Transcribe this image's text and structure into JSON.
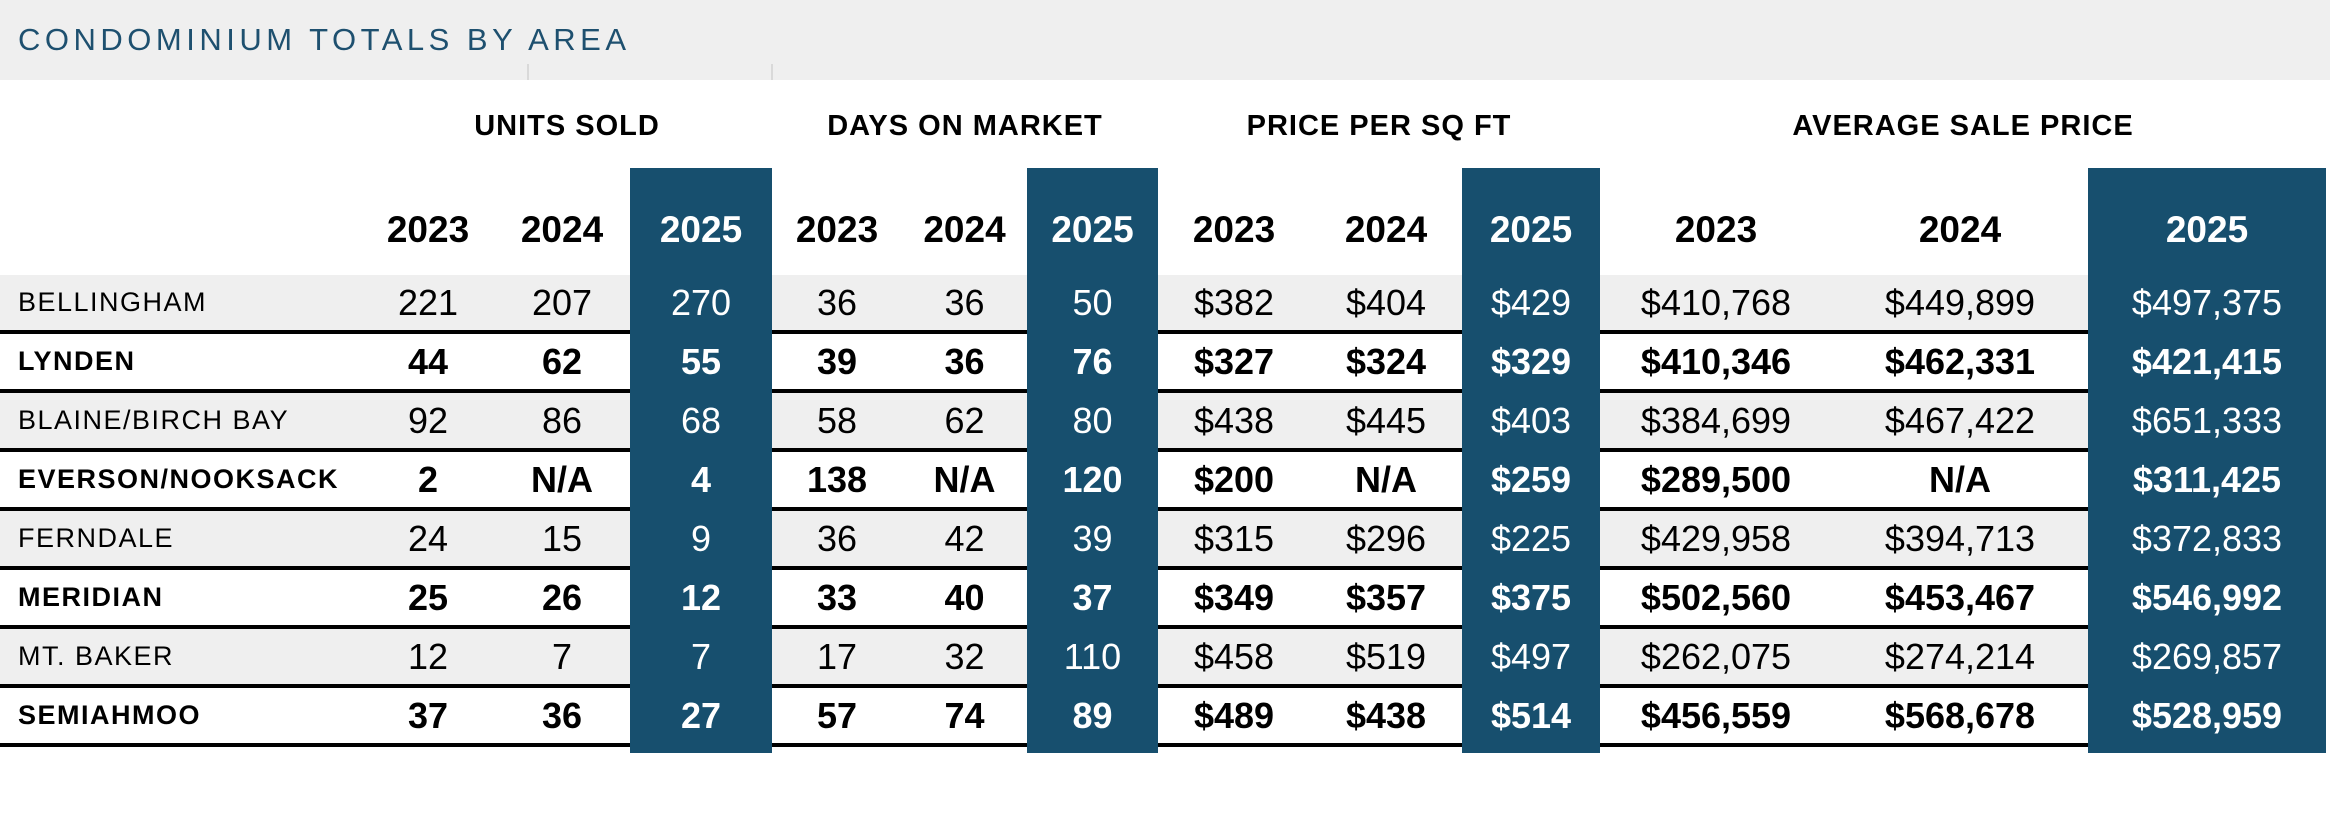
{
  "title": "CONDOMINIUM TOTALS BY AREA",
  "colors": {
    "highlight_blue": "#174F6E",
    "band_gray": "#EFEFEF",
    "title_blue": "#1E506F",
    "separator_black": "#000000"
  },
  "chart_data": {
    "type": "table",
    "title": "CONDOMINIUM TOTALS BY AREA",
    "column_groups": [
      "UNITS SOLD",
      "DAYS ON MARKET",
      "PRICE PER SQ FT",
      "AVERAGE SALE PRICE"
    ],
    "years": [
      "2023",
      "2024",
      "2025"
    ],
    "highlighted_year": "2025",
    "layout_hints": {
      "highlight_style": "2025 columns are continuous dark blue blocks with white text",
      "row_shading": "alternating gray (regular weight) and white (bold) rows separated by black lines"
    },
    "rows": [
      {
        "area": "BELLINGHAM",
        "units_sold": [
          "221",
          "207",
          "270"
        ],
        "days_on_market": [
          "36",
          "36",
          "50"
        ],
        "price_per_sq_ft": [
          "$382",
          "$404",
          "$429"
        ],
        "average_sale_price": [
          "$410,768",
          "$449,899",
          "$497,375"
        ]
      },
      {
        "area": "LYNDEN",
        "units_sold": [
          "44",
          "62",
          "55"
        ],
        "days_on_market": [
          "39",
          "36",
          "76"
        ],
        "price_per_sq_ft": [
          "$327",
          "$324",
          "$329"
        ],
        "average_sale_price": [
          "$410,346",
          "$462,331",
          "$421,415"
        ]
      },
      {
        "area": "BLAINE/BIRCH BAY",
        "units_sold": [
          "92",
          "86",
          "68"
        ],
        "days_on_market": [
          "58",
          "62",
          "80"
        ],
        "price_per_sq_ft": [
          "$438",
          "$445",
          "$403"
        ],
        "average_sale_price": [
          "$384,699",
          "$467,422",
          "$651,333"
        ]
      },
      {
        "area": "EVERSON/NOOKSACK",
        "units_sold": [
          "2",
          "N/A",
          "4"
        ],
        "days_on_market": [
          "138",
          "N/A",
          "120"
        ],
        "price_per_sq_ft": [
          "$200",
          "N/A",
          "$259"
        ],
        "average_sale_price": [
          "$289,500",
          "N/A",
          "$311,425"
        ]
      },
      {
        "area": "FERNDALE",
        "units_sold": [
          "24",
          "15",
          "9"
        ],
        "days_on_market": [
          "36",
          "42",
          "39"
        ],
        "price_per_sq_ft": [
          "$315",
          "$296",
          "$225"
        ],
        "average_sale_price": [
          "$429,958",
          "$394,713",
          "$372,833"
        ]
      },
      {
        "area": "MERIDIAN",
        "units_sold": [
          "25",
          "26",
          "12"
        ],
        "days_on_market": [
          "33",
          "40",
          "37"
        ],
        "price_per_sq_ft": [
          "$349",
          "$357",
          "$375"
        ],
        "average_sale_price": [
          "$502,560",
          "$453,467",
          "$546,992"
        ]
      },
      {
        "area": "MT. BAKER",
        "units_sold": [
          "12",
          "7",
          "7"
        ],
        "days_on_market": [
          "17",
          "32",
          "110"
        ],
        "price_per_sq_ft": [
          "$458",
          "$519",
          "$497"
        ],
        "average_sale_price": [
          "$262,075",
          "$274,214",
          "$269,857"
        ]
      },
      {
        "area": "SEMIAHMOO",
        "units_sold": [
          "37",
          "36",
          "27"
        ],
        "days_on_market": [
          "57",
          "74",
          "89"
        ],
        "price_per_sq_ft": [
          "$489",
          "$438",
          "$514"
        ],
        "average_sale_price": [
          "$456,559",
          "$568,678",
          "$528,959"
        ]
      }
    ]
  }
}
